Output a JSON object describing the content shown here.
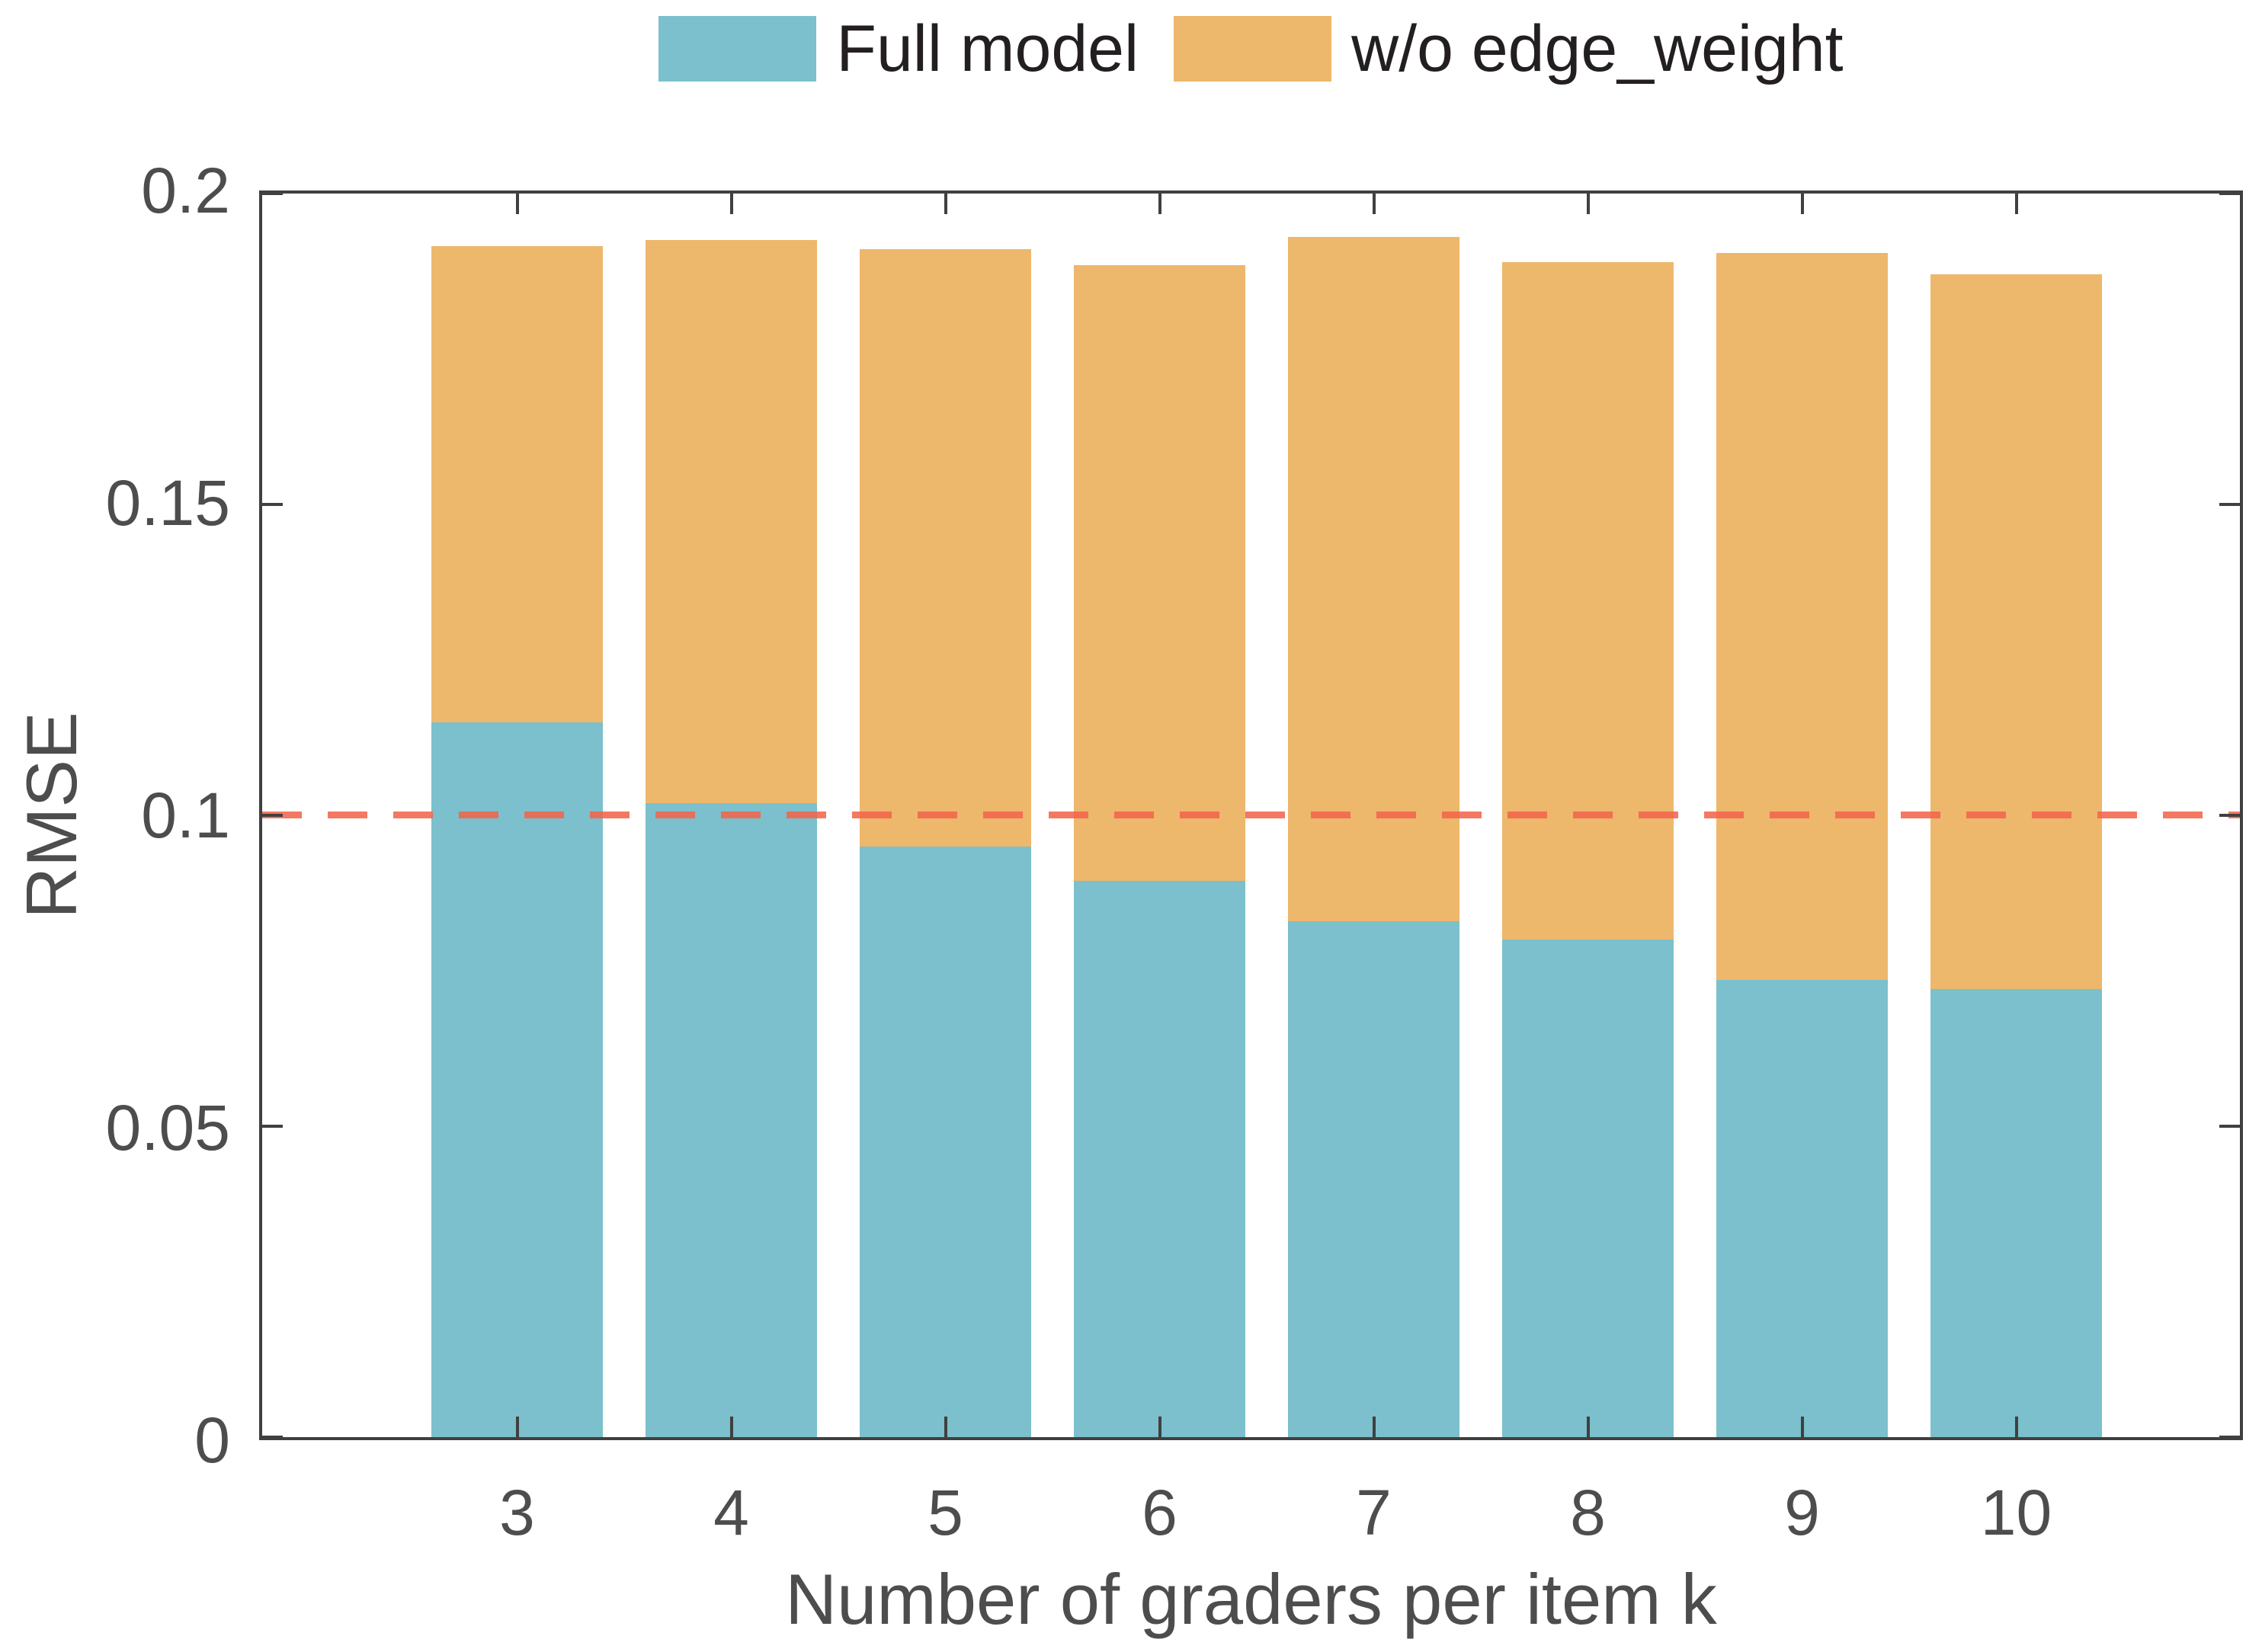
{
  "chart_data": {
    "type": "bar",
    "mode": "overlaid",
    "title": "",
    "xlabel": "Number of graders per item k",
    "ylabel": "RMSE",
    "categories": [
      "3",
      "4",
      "5",
      "6",
      "7",
      "8",
      "9",
      "10"
    ],
    "series": [
      {
        "name": "Full model",
        "color": "#7BC0CC",
        "values": [
          0.115,
          0.102,
          0.095,
          0.0895,
          0.083,
          0.08,
          0.0735,
          0.072
        ]
      },
      {
        "name": "w/o edge_weight",
        "color": "#EDB76C",
        "values": [
          0.1915,
          0.1925,
          0.191,
          0.1885,
          0.193,
          0.189,
          0.1905,
          0.187
        ]
      }
    ],
    "reference_line": {
      "value": 0.1,
      "color": "#F2654C",
      "style": "dashed"
    },
    "ylim": [
      0,
      0.2
    ],
    "yticks": [
      0,
      0.05,
      0.1,
      0.15,
      0.2
    ],
    "ytick_labels": [
      "0",
      "0.05",
      "0.1",
      "0.15",
      "0.2"
    ],
    "legend_position": "top",
    "grid": "off",
    "axis_color": "#404040",
    "text_color": "#4d4d4d"
  }
}
